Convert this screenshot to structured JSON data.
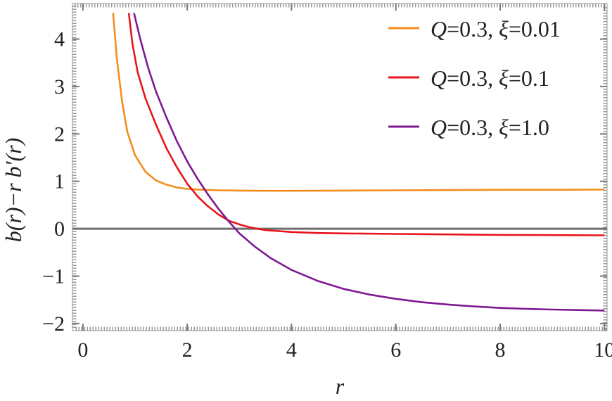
{
  "chart_data": {
    "type": "line",
    "title": "",
    "xlabel": "r",
    "ylabel": "b(r)−r b′(r)",
    "xlim": [
      -0.2,
      10.05
    ],
    "ylim": [
      -2.15,
      4.75
    ],
    "x_ticks": [
      0,
      2,
      4,
      6,
      8,
      10
    ],
    "y_ticks": [
      -2,
      -1,
      0,
      1,
      2,
      3,
      4
    ],
    "x_tick_labels": [
      "0",
      "2",
      "4",
      "6",
      "8",
      "10"
    ],
    "y_tick_labels": [
      "−2",
      "−1",
      "0",
      "1",
      "2",
      "3",
      "4"
    ],
    "zero_line": true,
    "frame": "dotted-ticks",
    "legend_position": "top-right",
    "series": [
      {
        "name": "Q=0.3, ξ=0.01",
        "color": "#F28E1C",
        "points": [
          [
            0.58,
            4.55
          ],
          [
            0.65,
            3.6
          ],
          [
            0.75,
            2.7
          ],
          [
            0.85,
            2.05
          ],
          [
            1.0,
            1.55
          ],
          [
            1.2,
            1.2
          ],
          [
            1.4,
            1.02
          ],
          [
            1.6,
            0.93
          ],
          [
            1.8,
            0.87
          ],
          [
            2.0,
            0.84
          ],
          [
            2.3,
            0.82
          ],
          [
            2.6,
            0.81
          ],
          [
            3.0,
            0.805
          ],
          [
            3.5,
            0.8
          ],
          [
            4.0,
            0.8
          ],
          [
            5.0,
            0.805
          ],
          [
            6.0,
            0.81
          ],
          [
            7.0,
            0.815
          ],
          [
            8.0,
            0.82
          ],
          [
            9.0,
            0.82
          ],
          [
            10.0,
            0.825
          ]
        ]
      },
      {
        "name": "Q=0.3, ξ=0.1",
        "color": "#E8141C",
        "points": [
          [
            0.88,
            4.55
          ],
          [
            0.95,
            3.9
          ],
          [
            1.05,
            3.3
          ],
          [
            1.2,
            2.75
          ],
          [
            1.4,
            2.2
          ],
          [
            1.6,
            1.7
          ],
          [
            1.8,
            1.3
          ],
          [
            2.0,
            0.95
          ],
          [
            2.2,
            0.68
          ],
          [
            2.4,
            0.47
          ],
          [
            2.6,
            0.3
          ],
          [
            2.8,
            0.17
          ],
          [
            3.0,
            0.09
          ],
          [
            3.2,
            0.03
          ],
          [
            3.5,
            -0.03
          ],
          [
            4.0,
            -0.07
          ],
          [
            4.5,
            -0.09
          ],
          [
            5.0,
            -0.1
          ],
          [
            6.0,
            -0.11
          ],
          [
            7.0,
            -0.12
          ],
          [
            8.0,
            -0.13
          ],
          [
            9.0,
            -0.135
          ],
          [
            10.0,
            -0.14
          ]
        ]
      },
      {
        "name": "Q=0.3, ξ=1.0",
        "color": "#7D1A92",
        "points": [
          [
            0.98,
            4.55
          ],
          [
            1.1,
            4.0
          ],
          [
            1.25,
            3.4
          ],
          [
            1.4,
            2.9
          ],
          [
            1.6,
            2.35
          ],
          [
            1.8,
            1.85
          ],
          [
            2.0,
            1.42
          ],
          [
            2.2,
            1.05
          ],
          [
            2.4,
            0.72
          ],
          [
            2.6,
            0.42
          ],
          [
            2.8,
            0.15
          ],
          [
            3.0,
            -0.1
          ],
          [
            3.3,
            -0.38
          ],
          [
            3.6,
            -0.62
          ],
          [
            4.0,
            -0.87
          ],
          [
            4.5,
            -1.1
          ],
          [
            5.0,
            -1.27
          ],
          [
            5.5,
            -1.39
          ],
          [
            6.0,
            -1.48
          ],
          [
            6.5,
            -1.55
          ],
          [
            7.0,
            -1.6
          ],
          [
            7.5,
            -1.64
          ],
          [
            8.0,
            -1.67
          ],
          [
            8.5,
            -1.69
          ],
          [
            9.0,
            -1.705
          ],
          [
            9.5,
            -1.715
          ],
          [
            10.0,
            -1.725
          ]
        ]
      }
    ]
  },
  "legend": {
    "items": [
      {
        "q": "Q",
        "q_val": "=0.3, ",
        "xi": "ξ",
        "xi_val": "=0.01"
      },
      {
        "q": "Q",
        "q_val": "=0.3, ",
        "xi": "ξ",
        "xi_val": "=0.1"
      },
      {
        "q": "Q",
        "q_val": "=0.3, ",
        "xi": "ξ",
        "xi_val": "=1.0"
      }
    ]
  }
}
